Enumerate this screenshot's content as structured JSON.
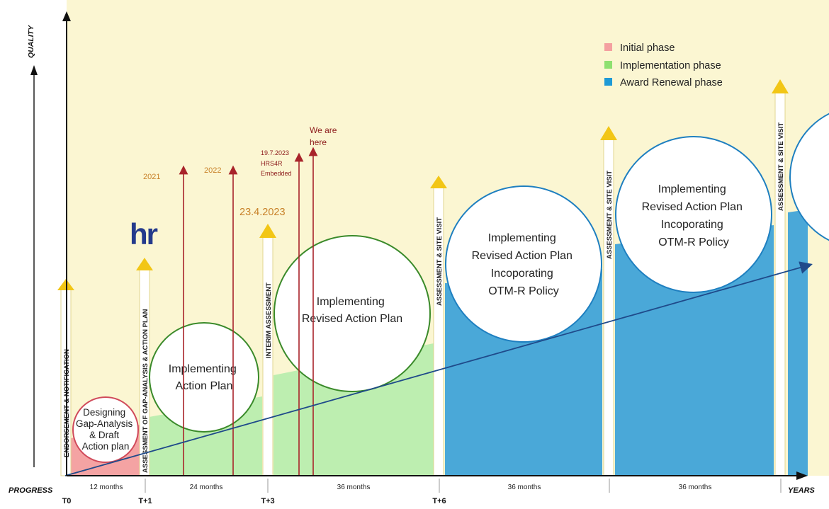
{
  "axes": {
    "y_label": "QUALITY",
    "progress_label": "PROGRESS",
    "years_label": "YEARS"
  },
  "legend": [
    {
      "label": "Initial phase",
      "color": "#f4a0a0"
    },
    {
      "label": "Implementation phase",
      "color": "#8ee070"
    },
    {
      "label": "Award Renewal phase",
      "color": "#1e9ad6"
    }
  ],
  "ticks": [
    "T0",
    "T+1",
    "T+3",
    "T+6"
  ],
  "durations": [
    "12 months",
    "24 months",
    "36 months",
    "36 months",
    "36 months"
  ],
  "milestones": {
    "endorsement": "ENDORSEMENT & NOTIFICATION",
    "gap_assessment": "ASSESSMENT OF GAP-ANALYSIS & ACTION PLAN",
    "interim": "INTERIM ASSESSMENT",
    "site_visit_1": "ASSESSMENT & SITE VISIT",
    "site_visit_2": "ASSESSMENT & SITE VISIT",
    "site_visit_3": "ASSESSMENT & SITE VISIT"
  },
  "circles": {
    "designing": [
      "Designing",
      "Gap-Analysis",
      "& Draft",
      "Action plan"
    ],
    "implementing": [
      "Implementing",
      "Action Plan"
    ],
    "revised": [
      "Implementing",
      "Revised Action Plan"
    ],
    "otm1": [
      "Implementing",
      "Revised Action Plan",
      "Incoporating",
      "OTM-R Policy"
    ],
    "otm2": [
      "Implementing",
      "Revised Action Plan",
      "Incoporating",
      "OTM-R Policy"
    ]
  },
  "annotations": {
    "year_2021": "2021",
    "year_2022": "2022",
    "date_interim": "23.4.2023",
    "embedded": [
      "19.7.2023",
      "HRS4R",
      "Embedded"
    ],
    "we_are_here": [
      "We are",
      "here"
    ]
  },
  "logo_text": "hr"
}
